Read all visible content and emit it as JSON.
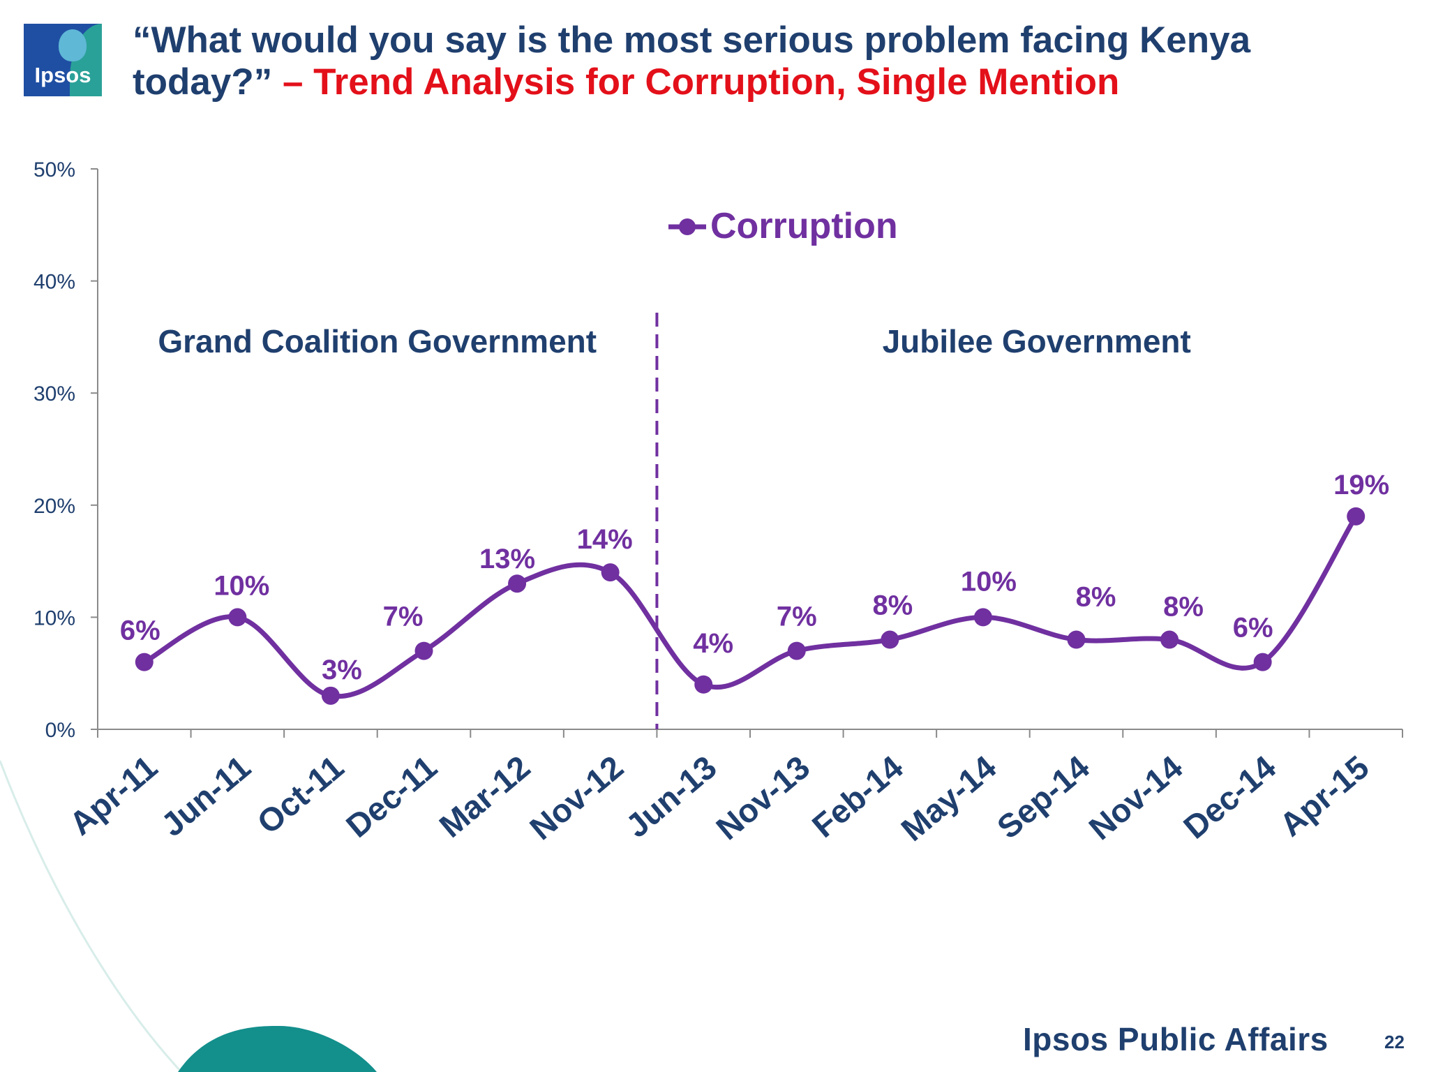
{
  "logo": {
    "text": "Ipsos"
  },
  "title": {
    "part1": "“What would you say is the most serious problem facing Kenya today?”",
    "part2": " – Trend Analysis for Corruption, Single Mention"
  },
  "chart_data": {
    "type": "line",
    "categories": [
      "Apr-11",
      "Jun-11",
      "Oct-11",
      "Dec-11",
      "Mar-12",
      "Nov-12",
      "Jun-13",
      "Nov-13",
      "Feb-14",
      "May-14",
      "Sep-14",
      "Nov-14",
      "Dec-14",
      "Apr-15"
    ],
    "series": [
      {
        "name": "Corruption",
        "values": [
          6,
          10,
          3,
          7,
          13,
          14,
          4,
          7,
          8,
          10,
          8,
          8,
          6,
          19
        ],
        "color": "#7030a0"
      }
    ],
    "data_labels": [
      "6%",
      "10%",
      "3%",
      "7%",
      "13%",
      "14%",
      "4%",
      "7%",
      "8%",
      "10%",
      "8%",
      "8%",
      "6%",
      "19%"
    ],
    "ylim": [
      0,
      50
    ],
    "yticks": [
      "0%",
      "10%",
      "20%",
      "30%",
      "40%",
      "50%"
    ],
    "legend": "top-center",
    "period_divider_after": "Nov-12",
    "periods": [
      "Grand Coalition Government",
      "Jubilee Government"
    ],
    "grid": false
  },
  "colors": {
    "axis_text": "#1f3f6e",
    "accent_red": "#e3101a",
    "series": "#7030a0",
    "teal": "#138f8c"
  },
  "footer": {
    "brand": "Ipsos Public Affairs",
    "page": "22"
  }
}
